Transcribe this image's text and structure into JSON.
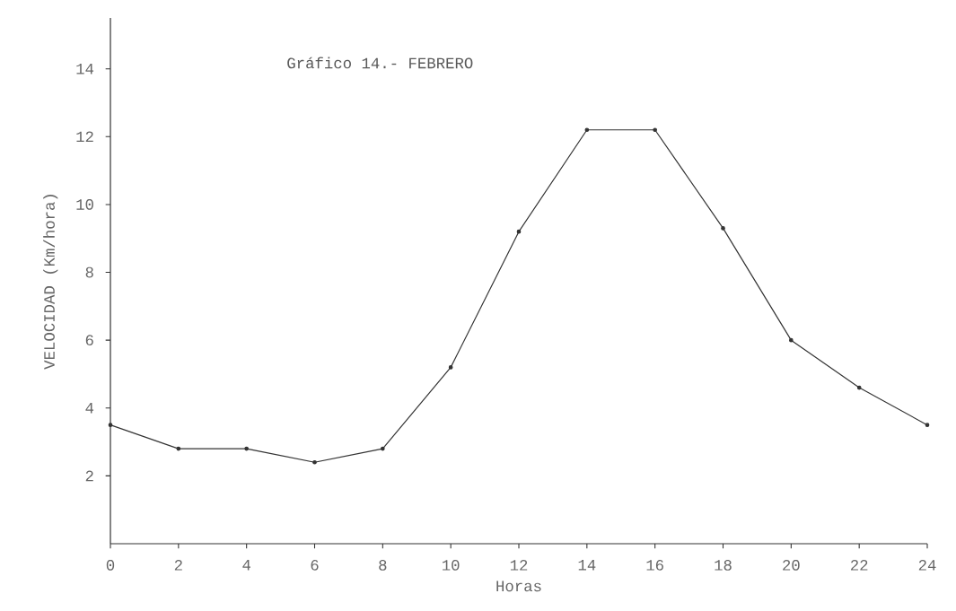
{
  "chart_data": {
    "type": "line",
    "title": "Gráfico 14.- FEBRERO",
    "xlabel": "Horas",
    "ylabel": "VELOCIDAD (Km/hora)",
    "x": [
      0,
      2,
      4,
      6,
      8,
      10,
      12,
      14,
      16,
      18,
      20,
      22,
      24
    ],
    "series": [
      {
        "color": "#333333",
        "values": [
          3.5,
          2.8,
          2.8,
          2.4,
          2.8,
          5.2,
          9.2,
          12.2,
          12.2,
          9.3,
          6.0,
          4.6,
          3.5
        ]
      }
    ],
    "xlim": [
      0,
      24
    ],
    "ylim": [
      0,
      15.5
    ],
    "xticks": [
      0,
      2,
      4,
      6,
      8,
      10,
      12,
      14,
      16,
      18,
      20,
      22,
      24
    ],
    "yticks": [
      2,
      4,
      6,
      8,
      10,
      12,
      14
    ],
    "grid": false,
    "marker": "circle",
    "line_style": "solid"
  }
}
